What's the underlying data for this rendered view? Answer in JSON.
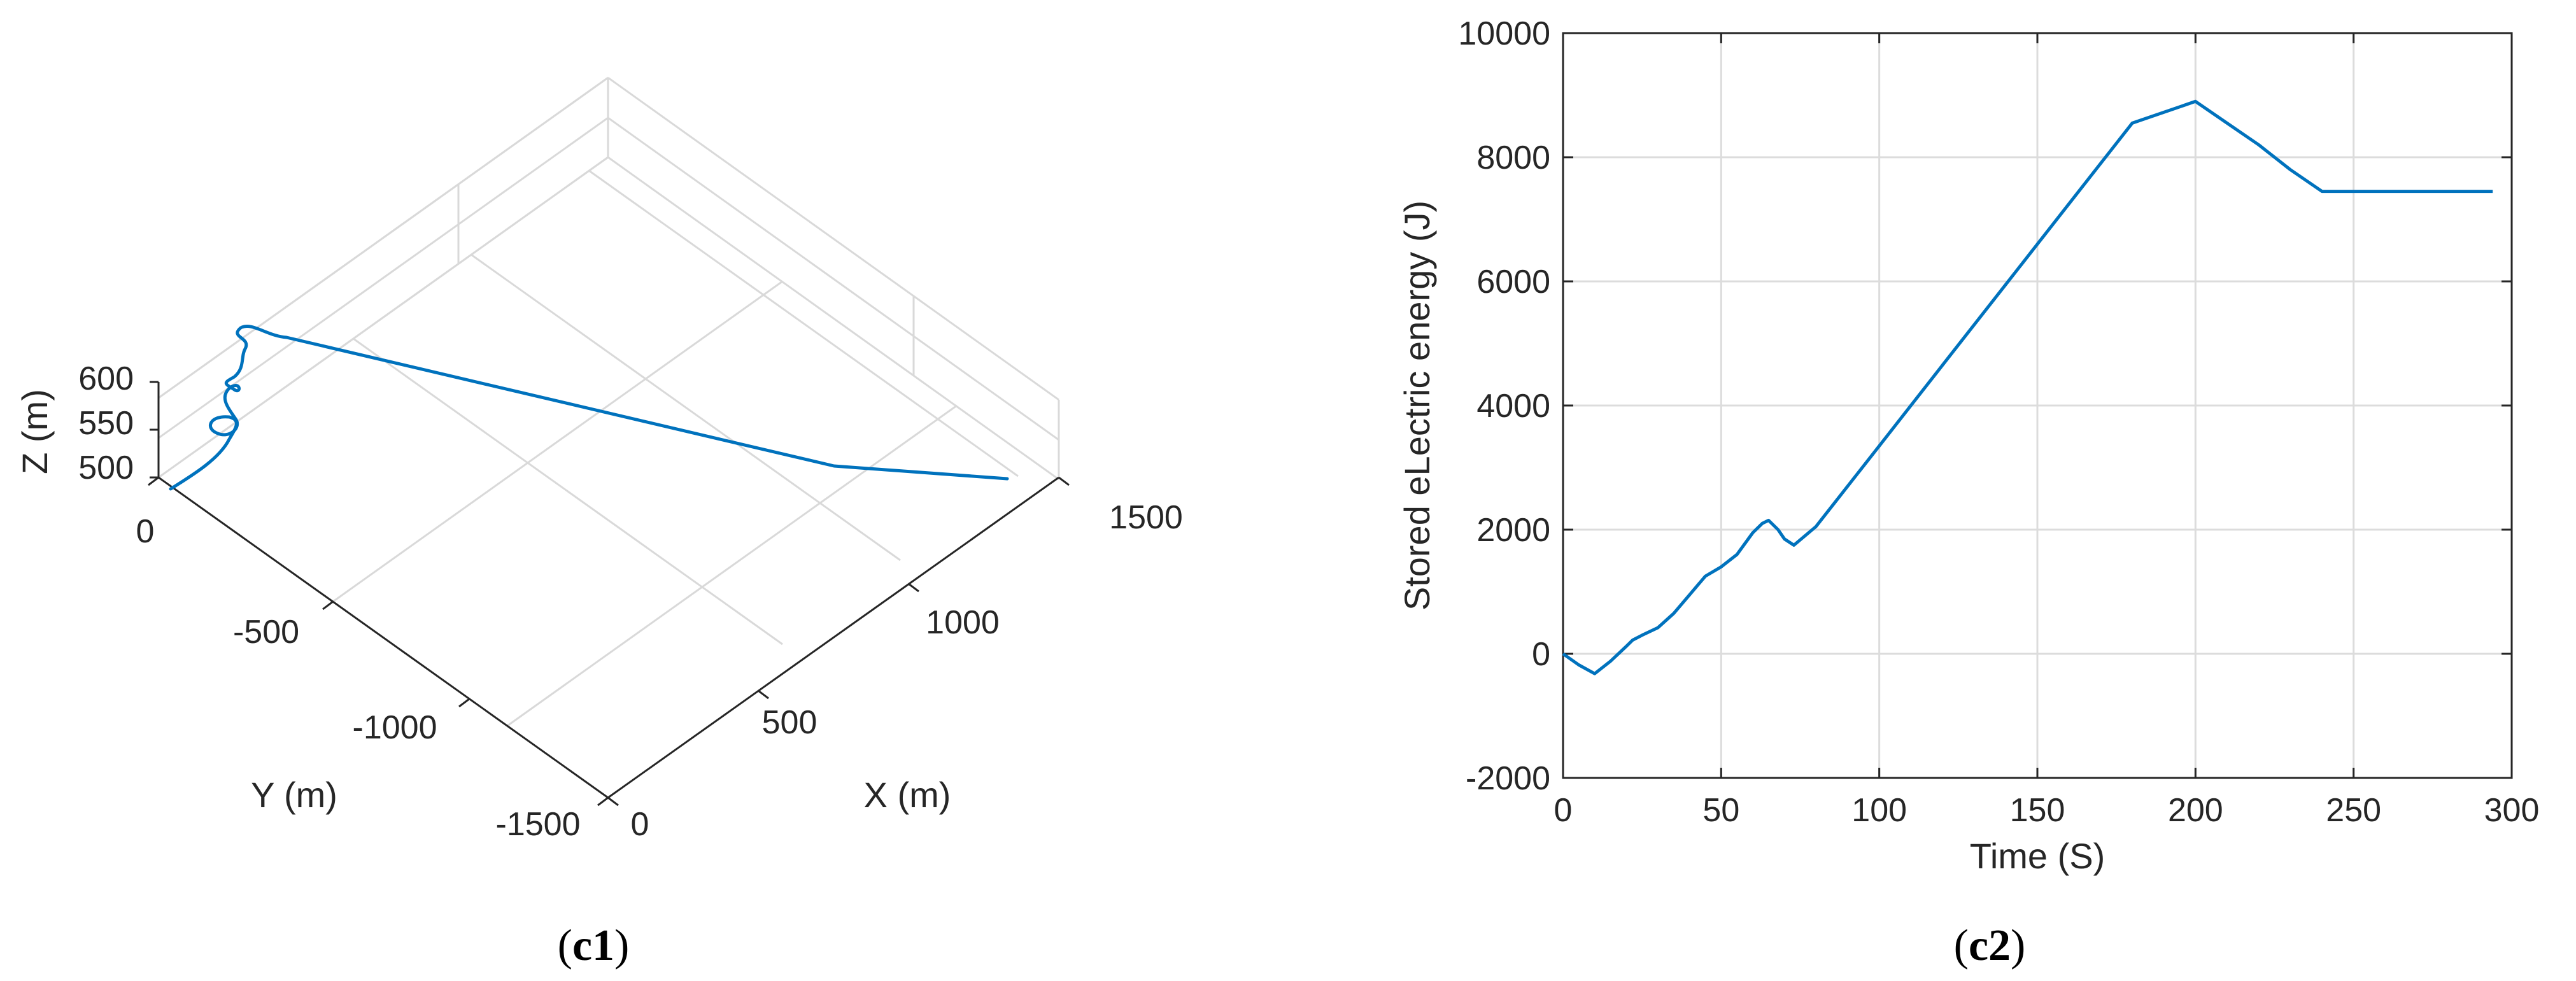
{
  "chart_data": [
    {
      "id": "c1",
      "type": "line3d",
      "caption_open": "(",
      "caption_label": "c1",
      "caption_close": ")",
      "xlabel": "X (m)",
      "ylabel": "Y (m)",
      "zlabel": "Z (m)",
      "x_ticks": [
        "0",
        "500",
        "1000",
        "1500"
      ],
      "y_ticks": [
        "0",
        "-500",
        "-1000",
        "-1500"
      ],
      "z_ticks": [
        "500",
        "550",
        "600"
      ],
      "x_range": [
        0,
        1500
      ],
      "y_range": [
        -1500,
        0
      ],
      "z_range": [
        500,
        600
      ],
      "grid": true,
      "line_color": "#0072BD"
    },
    {
      "id": "c2",
      "type": "line",
      "caption_open": "(",
      "caption_label": "c2",
      "caption_close": ")",
      "xlabel": "Time (S)",
      "ylabel": "Stored eLectric energy (J)",
      "xlim": [
        0,
        300
      ],
      "ylim": [
        -2000,
        10000
      ],
      "x_ticks": [
        0,
        50,
        100,
        150,
        200,
        250,
        300
      ],
      "y_ticks": [
        -2000,
        0,
        2000,
        4000,
        6000,
        8000,
        10000
      ],
      "grid": true,
      "line_color": "#0072BD",
      "series": [
        {
          "x": [
            0,
            5,
            10,
            15,
            20,
            22,
            25,
            30,
            35,
            40,
            45,
            50,
            55,
            60,
            63,
            65,
            68,
            70,
            73,
            80,
            100,
            120,
            140,
            160,
            180,
            200,
            210,
            220,
            230,
            240,
            260,
            280,
            294
          ],
          "y": [
            0,
            -180,
            -320,
            -120,
            120,
            220,
            300,
            420,
            650,
            950,
            1250,
            1400,
            1600,
            1950,
            2100,
            2150,
            2000,
            1850,
            1750,
            2050,
            3350,
            4650,
            5950,
            7250,
            8550,
            8900,
            8550,
            8200,
            7800,
            7450,
            7450,
            7450,
            7450
          ]
        }
      ]
    }
  ]
}
